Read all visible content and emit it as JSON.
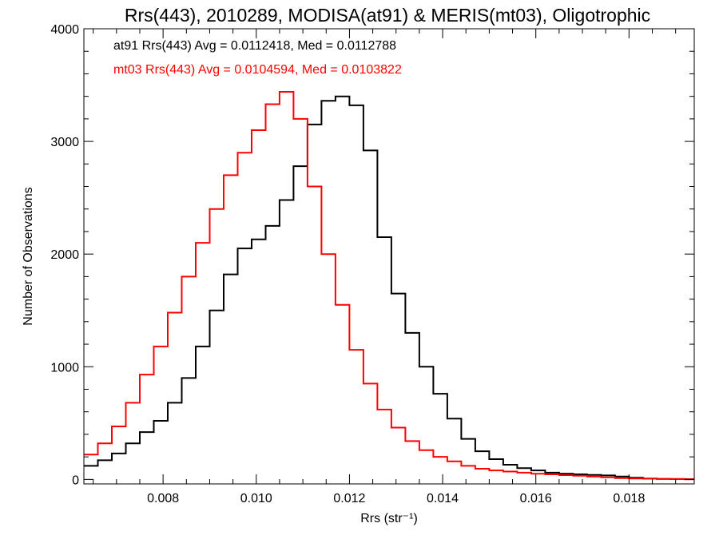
{
  "chart_data": {
    "type": "line",
    "title": "Rrs(443), 2010289, MODISA(at91) & MERIS(mt03), Oligotrophic",
    "xlabel": "Rrs (str⁻¹)",
    "ylabel": "Number of Observations",
    "xlim": [
      0.0063,
      0.0194
    ],
    "ylim": [
      -40,
      4000
    ],
    "x_ticks": [
      "0.008",
      "0.010",
      "0.012",
      "0.014",
      "0.016",
      "0.018"
    ],
    "y_ticks": [
      "0",
      "1000",
      "2000",
      "3000",
      "4000"
    ],
    "grid": false,
    "step": true,
    "annotations": [
      {
        "text": "at91 Rrs(443) Avg = 0.0112418, Med = 0.0112788",
        "color": "#000000"
      },
      {
        "text": "mt03 Rrs(443) Avg = 0.0104594, Med = 0.0103822",
        "color": "#ff0000"
      }
    ],
    "series": [
      {
        "color": "#000000",
        "points": [
          [
            0.0063,
            120
          ],
          [
            0.0066,
            170
          ],
          [
            0.0069,
            230
          ],
          [
            0.0072,
            320
          ],
          [
            0.0075,
            420
          ],
          [
            0.0078,
            520
          ],
          [
            0.0081,
            680
          ],
          [
            0.0084,
            900
          ],
          [
            0.0087,
            1180
          ],
          [
            0.009,
            1500
          ],
          [
            0.0093,
            1820
          ],
          [
            0.0096,
            2050
          ],
          [
            0.0099,
            2130
          ],
          [
            0.0102,
            2250
          ],
          [
            0.0105,
            2480
          ],
          [
            0.0108,
            2780
          ],
          [
            0.0111,
            3150
          ],
          [
            0.0114,
            3360
          ],
          [
            0.0117,
            3400
          ],
          [
            0.012,
            3320
          ],
          [
            0.0123,
            2920
          ],
          [
            0.0126,
            2150
          ],
          [
            0.0129,
            1650
          ],
          [
            0.0132,
            1300
          ],
          [
            0.0135,
            1000
          ],
          [
            0.0138,
            760
          ],
          [
            0.0141,
            540
          ],
          [
            0.0144,
            360
          ],
          [
            0.0147,
            250
          ],
          [
            0.015,
            180
          ],
          [
            0.0153,
            130
          ],
          [
            0.0156,
            100
          ],
          [
            0.0159,
            80
          ],
          [
            0.0162,
            60
          ],
          [
            0.0165,
            50
          ],
          [
            0.0168,
            45
          ],
          [
            0.0171,
            40
          ],
          [
            0.0174,
            35
          ],
          [
            0.0177,
            25
          ],
          [
            0.018,
            15
          ],
          [
            0.0183,
            8
          ],
          [
            0.0186,
            5
          ],
          [
            0.0189,
            3
          ],
          [
            0.0192,
            2
          ]
        ]
      },
      {
        "color": "#ff0000",
        "points": [
          [
            0.0063,
            220
          ],
          [
            0.0066,
            320
          ],
          [
            0.0069,
            470
          ],
          [
            0.0072,
            680
          ],
          [
            0.0075,
            930
          ],
          [
            0.0078,
            1180
          ],
          [
            0.0081,
            1480
          ],
          [
            0.0084,
            1800
          ],
          [
            0.0087,
            2100
          ],
          [
            0.009,
            2400
          ],
          [
            0.0093,
            2700
          ],
          [
            0.0096,
            2900
          ],
          [
            0.0099,
            3100
          ],
          [
            0.0102,
            3330
          ],
          [
            0.0105,
            3440
          ],
          [
            0.0108,
            3200
          ],
          [
            0.0111,
            2600
          ],
          [
            0.0114,
            2000
          ],
          [
            0.0117,
            1550
          ],
          [
            0.012,
            1150
          ],
          [
            0.0123,
            850
          ],
          [
            0.0126,
            620
          ],
          [
            0.0129,
            460
          ],
          [
            0.0132,
            340
          ],
          [
            0.0135,
            260
          ],
          [
            0.0138,
            200
          ],
          [
            0.0141,
            160
          ],
          [
            0.0144,
            120
          ],
          [
            0.0147,
            95
          ],
          [
            0.015,
            80
          ],
          [
            0.0153,
            70
          ],
          [
            0.0156,
            60
          ],
          [
            0.0159,
            50
          ],
          [
            0.0162,
            45
          ],
          [
            0.0165,
            38
          ],
          [
            0.0168,
            32
          ],
          [
            0.0171,
            25
          ],
          [
            0.0174,
            18
          ],
          [
            0.0177,
            12
          ],
          [
            0.018,
            8
          ],
          [
            0.0183,
            6
          ],
          [
            0.0186,
            4
          ],
          [
            0.0189,
            3
          ],
          [
            0.0192,
            2
          ]
        ]
      }
    ]
  }
}
